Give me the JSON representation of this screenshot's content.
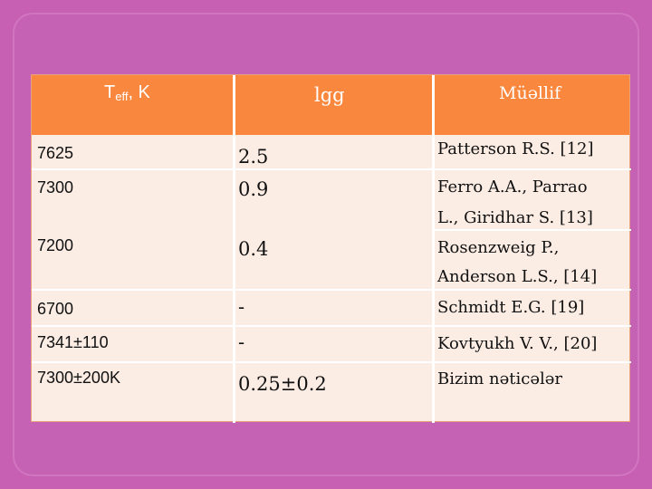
{
  "table": {
    "headers": {
      "teff_main": "T",
      "teff_sub": "eff",
      "teff_unit": ", K",
      "lgg": "lgg",
      "author": "Müəllif"
    },
    "col1": [
      "7625",
      "7300",
      "7200",
      "6700",
      "7341±110",
      "7300±200K"
    ],
    "col2": [
      "2.5",
      "0.9",
      "0.4",
      "-",
      "-",
      "0.25±0.2"
    ],
    "col3": [
      "Patterson R.S. [12]",
      "Ferro A.A., Parrao",
      "L., Giridhar S. [13]",
      "Rosenzweig P.,",
      "Anderson L.S., [14]",
      "Schmidt E.G. [19]",
      "Kovtyukh V. V., [20]",
      "Bizim nəticələr"
    ]
  },
  "colors": {
    "background": "#c75fb2",
    "header": "#f9873e",
    "table_body": "#fbece4"
  }
}
